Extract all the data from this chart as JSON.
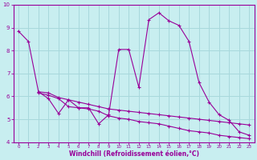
{
  "xlabel": "Windchill (Refroidissement éolien,°C)",
  "bg_color": "#c8eef0",
  "grid_color": "#a8d8dc",
  "line_color": "#990099",
  "xlim": [
    -0.5,
    23.5
  ],
  "ylim": [
    4,
    10
  ],
  "yticks": [
    4,
    5,
    6,
    7,
    8,
    9,
    10
  ],
  "xticks": [
    0,
    1,
    2,
    3,
    4,
    5,
    6,
    7,
    8,
    9,
    10,
    11,
    12,
    13,
    14,
    15,
    16,
    17,
    18,
    19,
    20,
    21,
    22,
    23
  ],
  "curve1_x": [
    0,
    1,
    2,
    3,
    4,
    5,
    6,
    7,
    8,
    9,
    10,
    11,
    12,
    13,
    14,
    15,
    16,
    17,
    18,
    19,
    20,
    21,
    22,
    23
  ],
  "curve1_y": [
    8.85,
    8.4,
    6.2,
    5.9,
    5.25,
    5.85,
    5.5,
    5.5,
    4.8,
    5.2,
    8.05,
    8.05,
    6.4,
    9.35,
    9.65,
    9.3,
    9.1,
    8.4,
    6.6,
    5.75,
    5.2,
    4.95,
    4.45,
    4.3
  ],
  "curve2_x": [
    2,
    3,
    4,
    5,
    6,
    7,
    8,
    9,
    10,
    11,
    12,
    13,
    14,
    15,
    16,
    17,
    18,
    19,
    20,
    21,
    22,
    23
  ],
  "curve2_y": [
    6.2,
    6.15,
    5.95,
    5.85,
    5.75,
    5.65,
    5.55,
    5.45,
    5.4,
    5.35,
    5.3,
    5.25,
    5.2,
    5.15,
    5.1,
    5.05,
    5.0,
    4.95,
    4.9,
    4.85,
    4.8,
    4.75
  ],
  "curve3_x": [
    2,
    3,
    4,
    5,
    6,
    7,
    8,
    9,
    10,
    11,
    12,
    13,
    14,
    15,
    16,
    17,
    18,
    19,
    20,
    21,
    22,
    23
  ],
  "curve3_y": [
    6.15,
    6.05,
    5.9,
    5.55,
    5.5,
    5.45,
    5.35,
    5.15,
    5.05,
    5.0,
    4.9,
    4.85,
    4.8,
    4.7,
    4.6,
    4.5,
    4.45,
    4.4,
    4.3,
    4.25,
    4.2,
    4.15
  ]
}
